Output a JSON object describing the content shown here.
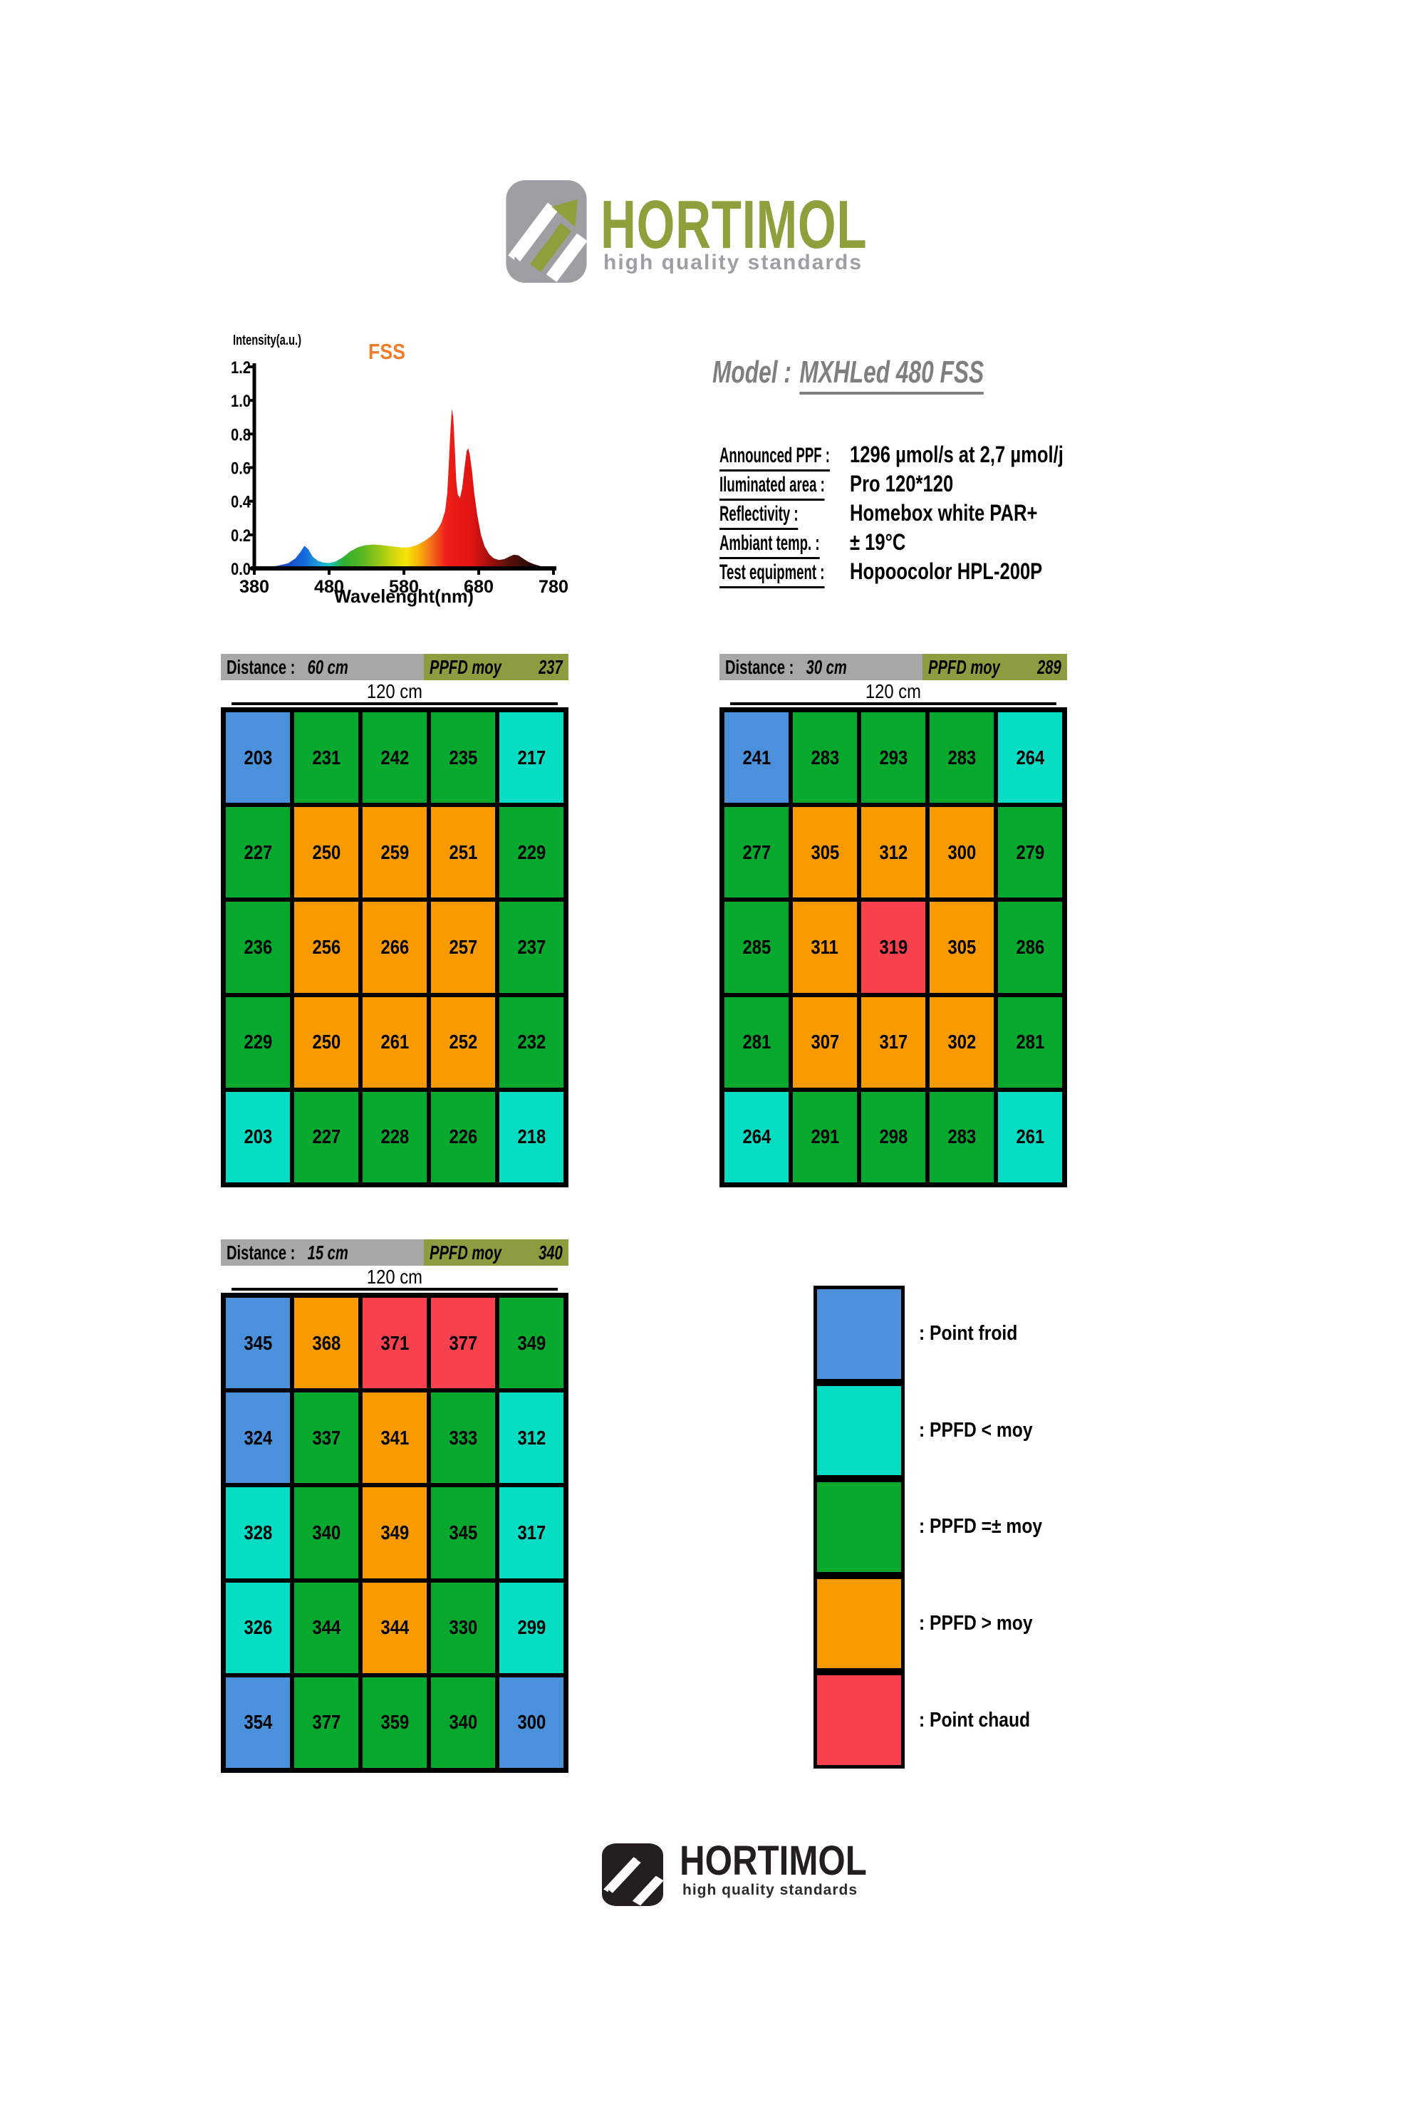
{
  "logo": {
    "brand": "HORTIMOL",
    "tagline": "high quality standards",
    "brand_color": "#8da03c",
    "icon_gray": "#9d9fa2",
    "footer_color": "#231f20"
  },
  "model": {
    "label": "Model :",
    "value": "MXHLed 480 FSS"
  },
  "specs": [
    {
      "label": "Announced PPF :",
      "value": "1296 µmol/s at 2,7 µmol/j"
    },
    {
      "label": "Iluminated area :",
      "value": "Pro 120*120"
    },
    {
      "label": "Reflectivity :",
      "value": "Homebox white PAR+"
    },
    {
      "label": "Ambiant temp. :",
      "value": "± 19°C"
    },
    {
      "label": "Test equipment :",
      "value": "Hopoocolor HPL-200P"
    }
  ],
  "colors": {
    "blue": "#4a90db",
    "cyan": "#04dcc3",
    "green": "#06a82e",
    "orange": "#f99b00",
    "red": "#f8414d",
    "olive": "#8e9c40",
    "gray_bar": "#a7a7a7"
  },
  "tables": [
    {
      "distance_label": "Distance :",
      "distance": "60 cm",
      "ppfd_label": "PPFD moy",
      "ppfd_avg": "237",
      "width_label": "120 cm",
      "cells": [
        [
          {
            "v": 203,
            "c": "blue"
          },
          {
            "v": 231,
            "c": "green"
          },
          {
            "v": 242,
            "c": "green"
          },
          {
            "v": 235,
            "c": "green"
          },
          {
            "v": 217,
            "c": "cyan"
          }
        ],
        [
          {
            "v": 227,
            "c": "green"
          },
          {
            "v": 250,
            "c": "orange"
          },
          {
            "v": 259,
            "c": "orange"
          },
          {
            "v": 251,
            "c": "orange"
          },
          {
            "v": 229,
            "c": "green"
          }
        ],
        [
          {
            "v": 236,
            "c": "green"
          },
          {
            "v": 256,
            "c": "orange"
          },
          {
            "v": 266,
            "c": "orange"
          },
          {
            "v": 257,
            "c": "orange"
          },
          {
            "v": 237,
            "c": "green"
          }
        ],
        [
          {
            "v": 229,
            "c": "green"
          },
          {
            "v": 250,
            "c": "orange"
          },
          {
            "v": 261,
            "c": "orange"
          },
          {
            "v": 252,
            "c": "orange"
          },
          {
            "v": 232,
            "c": "green"
          }
        ],
        [
          {
            "v": 203,
            "c": "cyan"
          },
          {
            "v": 227,
            "c": "green"
          },
          {
            "v": 228,
            "c": "green"
          },
          {
            "v": 226,
            "c": "green"
          },
          {
            "v": 218,
            "c": "cyan"
          }
        ]
      ]
    },
    {
      "distance_label": "Distance :",
      "distance": "30 cm",
      "ppfd_label": "PPFD moy",
      "ppfd_avg": "289",
      "width_label": "120 cm",
      "cells": [
        [
          {
            "v": 241,
            "c": "blue"
          },
          {
            "v": 283,
            "c": "green"
          },
          {
            "v": 293,
            "c": "green"
          },
          {
            "v": 283,
            "c": "green"
          },
          {
            "v": 264,
            "c": "cyan"
          }
        ],
        [
          {
            "v": 277,
            "c": "green"
          },
          {
            "v": 305,
            "c": "orange"
          },
          {
            "v": 312,
            "c": "orange"
          },
          {
            "v": 300,
            "c": "orange"
          },
          {
            "v": 279,
            "c": "green"
          }
        ],
        [
          {
            "v": 285,
            "c": "green"
          },
          {
            "v": 311,
            "c": "orange"
          },
          {
            "v": 319,
            "c": "red"
          },
          {
            "v": 305,
            "c": "orange"
          },
          {
            "v": 286,
            "c": "green"
          }
        ],
        [
          {
            "v": 281,
            "c": "green"
          },
          {
            "v": 307,
            "c": "orange"
          },
          {
            "v": 317,
            "c": "orange"
          },
          {
            "v": 302,
            "c": "orange"
          },
          {
            "v": 281,
            "c": "green"
          }
        ],
        [
          {
            "v": 264,
            "c": "cyan"
          },
          {
            "v": 291,
            "c": "green"
          },
          {
            "v": 298,
            "c": "green"
          },
          {
            "v": 283,
            "c": "green"
          },
          {
            "v": 261,
            "c": "cyan"
          }
        ]
      ]
    },
    {
      "distance_label": "Distance :",
      "distance": "15 cm",
      "ppfd_label": "PPFD moy",
      "ppfd_avg": "340",
      "width_label": "120 cm",
      "cells": [
        [
          {
            "v": 345,
            "c": "blue"
          },
          {
            "v": 368,
            "c": "orange"
          },
          {
            "v": 371,
            "c": "red"
          },
          {
            "v": 377,
            "c": "red"
          },
          {
            "v": 349,
            "c": "green"
          }
        ],
        [
          {
            "v": 324,
            "c": "blue"
          },
          {
            "v": 337,
            "c": "green"
          },
          {
            "v": 341,
            "c": "orange"
          },
          {
            "v": 333,
            "c": "green"
          },
          {
            "v": 312,
            "c": "cyan"
          }
        ],
        [
          {
            "v": 328,
            "c": "cyan"
          },
          {
            "v": 340,
            "c": "green"
          },
          {
            "v": 349,
            "c": "orange"
          },
          {
            "v": 345,
            "c": "green"
          },
          {
            "v": 317,
            "c": "cyan"
          }
        ],
        [
          {
            "v": 326,
            "c": "cyan"
          },
          {
            "v": 344,
            "c": "green"
          },
          {
            "v": 344,
            "c": "orange"
          },
          {
            "v": 330,
            "c": "green"
          },
          {
            "v": 299,
            "c": "cyan"
          }
        ],
        [
          {
            "v": 354,
            "c": "blue"
          },
          {
            "v": 377,
            "c": "green"
          },
          {
            "v": 359,
            "c": "green"
          },
          {
            "v": 340,
            "c": "green"
          },
          {
            "v": 300,
            "c": "blue"
          }
        ]
      ]
    }
  ],
  "legend": [
    {
      "color": "blue",
      "label": ": Point froid"
    },
    {
      "color": "cyan",
      "label": ": PPFD < moy"
    },
    {
      "color": "green",
      "label": ": PPFD =± moy"
    },
    {
      "color": "orange",
      "label": ": PPFD > moy"
    },
    {
      "color": "red",
      "label": ": Point chaud"
    }
  ],
  "chart_data": {
    "type": "area",
    "title": "FSS",
    "title_color": "#f07d28",
    "xlabel": "Wavelenght(nm)",
    "ylabel": "Intensity(a.u.)",
    "xlim": [
      380,
      780
    ],
    "ylim": [
      0,
      1.2
    ],
    "x_ticks": [
      380,
      480,
      580,
      680,
      780
    ],
    "y_ticks": [
      "0.0",
      "0.2",
      "0.4",
      "0.6",
      "0.8",
      "1.0",
      "1.2"
    ],
    "series": [
      {
        "name": "FSS spectrum",
        "x": [
          380,
          395,
          410,
          425,
          435,
          442,
          447,
          452,
          458,
          465,
          472,
          480,
          488,
          498,
          508,
          518,
          528,
          540,
          552,
          565,
          578,
          588,
          598,
          608,
          616,
          624,
          630,
          635,
          638,
          640,
          642,
          644,
          646,
          648,
          650,
          652,
          655,
          658,
          661,
          664,
          666,
          668,
          671,
          674,
          678,
          683,
          688,
          694,
          700,
          707,
          714,
          721,
          727,
          733,
          739,
          746,
          754,
          764,
          775,
          780
        ],
        "y": [
          0.005,
          0.008,
          0.015,
          0.03,
          0.06,
          0.1,
          0.135,
          0.115,
          0.07,
          0.045,
          0.035,
          0.032,
          0.04,
          0.065,
          0.1,
          0.125,
          0.138,
          0.142,
          0.138,
          0.13,
          0.124,
          0.126,
          0.14,
          0.165,
          0.19,
          0.225,
          0.27,
          0.34,
          0.45,
          0.62,
          0.8,
          0.95,
          0.9,
          0.72,
          0.52,
          0.44,
          0.42,
          0.48,
          0.6,
          0.7,
          0.715,
          0.68,
          0.58,
          0.45,
          0.32,
          0.2,
          0.13,
          0.085,
          0.06,
          0.05,
          0.055,
          0.07,
          0.082,
          0.078,
          0.06,
          0.04,
          0.025,
          0.012,
          0.006,
          0.005
        ]
      }
    ],
    "gradient": [
      {
        "o": 0.0,
        "c": "#2a2a9e"
      },
      {
        "o": 0.12,
        "c": "#1a52c8"
      },
      {
        "o": 0.165,
        "c": "#1566dd"
      },
      {
        "o": 0.21,
        "c": "#1e9ad8"
      },
      {
        "o": 0.25,
        "c": "#17c6c0"
      },
      {
        "o": 0.3,
        "c": "#2fae2f"
      },
      {
        "o": 0.36,
        "c": "#58b822"
      },
      {
        "o": 0.42,
        "c": "#9ac816"
      },
      {
        "o": 0.47,
        "c": "#d6d90e"
      },
      {
        "o": 0.51,
        "c": "#f5e309"
      },
      {
        "o": 0.55,
        "c": "#f8b206"
      },
      {
        "o": 0.59,
        "c": "#f4701c"
      },
      {
        "o": 0.64,
        "c": "#ee2019"
      },
      {
        "o": 0.73,
        "c": "#e01313"
      },
      {
        "o": 0.79,
        "c": "#9e0f0d"
      },
      {
        "o": 0.85,
        "c": "#58100a"
      },
      {
        "o": 0.92,
        "c": "#2e0b06"
      },
      {
        "o": 1.0,
        "c": "#1d0a04"
      }
    ]
  }
}
